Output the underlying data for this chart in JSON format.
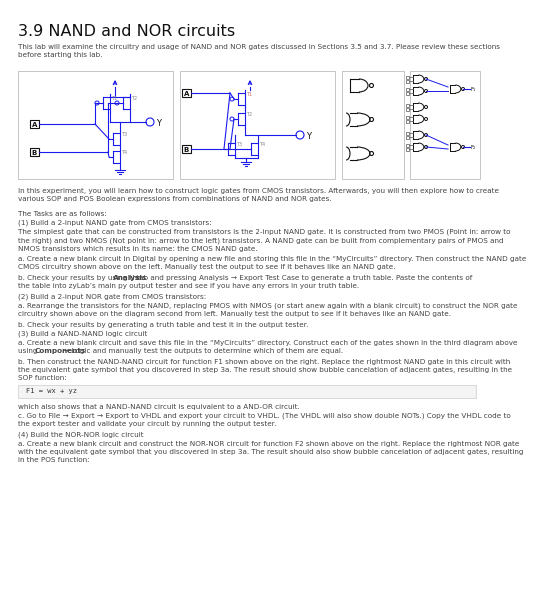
{
  "title": "3.9 NAND and NOR circuits",
  "title_fontsize": 11.5,
  "body_fontsize": 5.2,
  "code_fontsize": 5.0,
  "bg_color": "#ffffff",
  "text_color": "#444444",
  "blue_color": "#1a1aee",
  "intro": "This lab will examine the circuitry and usage of NAND and NOR gates discussed in Sections 3.5 and 3.7. Please review these sections\nbefore starting this lab.",
  "para1": "In this experiment, you will learn how to construct logic gates from CMOS transistors. Afterwards, you will then explore how to create\nvarious SOP and POS Boolean expressions from combinations of NAND and NOR gates.",
  "tasks_header": "The Tasks are as follows:",
  "task1_header": "(1) Build a 2-input NAND gate from CMOS transistors:",
  "task1_body": "The simplest gate that can be constructed from transistors is the 2-input NAND gate. It is constructed from two PMOS (Point in: arrow to\nthe right) and two NMOS (Not point in: arrow to the left) transistors. A NAND gate can be built from complementary pairs of PMOS and\nNMOS transistors which results in its name: the CMOS NAND gate.",
  "task1a": "a. Create a new blank circuit in Digital by opening a new file and storing this file in the “MyCircuits” directory. Then construct the NAND gate\nCMOS circuitry shown above on the left. Manually test the output to see if it behaves like an NAND gate.",
  "task1b_pre": "b. Check your results by using the ",
  "task1b_bold": "Analysis",
  "task1b_post": " tab and pressing Analysis → Export Test Case to generate a truth table. Paste the contents of\nthe table into zyLab’s main py output tester and see if you have any errors in your truth table.",
  "task2_header": "(2) Build a 2-input NOR gate from CMOS transistors:",
  "task2a": "a. Rearrange the transistors for the NAND, replacing PMOS with NMOS (or start anew again with a blank circuit) to construct the NOR gate\ncircuitry shown above on the diagram second from left. Manually test the output to see if it behaves like an NAND gate.",
  "task2b": "b. Check your results by generating a truth table and test it in the output tester.",
  "task3_header": "(3) Build a NAND-NAND logic circuit",
  "task3a_pre": "a. Create a new blank circuit and save this file in the “MyCircuits” directory. Construct each of the gates shown in the third diagram above\nusing ",
  "task3a_bold": "Components",
  "task3a_post": " → Logic and manually test the outputs to determine which of them are equal.",
  "task3b": "b. Then construct the NAND-NAND circuit for function F1 shown above on the right. Replace the rightmost NAND gate in this circuit with\nthe equivalent gate symbol that you discovered in step 3a. The result should show bubble cancelation of adjacent gates, resulting in the\nSOP function:",
  "code_line": "F1 = wx + yz",
  "task3_after": "which also shows that a NAND-NAND circuit is equivalent to a AND-OR circuit.",
  "task3c": "c. Go to File → Export → Export to VHDL and export your circuit to VHDL. (The VHDL will also show double NOTs.) Copy the VHDL code to\nthe export tester and validate your circuit by running the output tester.",
  "task4_header": "(4) Build the NOR-NOR logic circuit",
  "task4a": "a. Create a new blank circuit and construct the NOR-NOR circuit for function F2 shown above on the right. Replace the rightmost NOR gate\nwith the equivalent gate symbol that you discovered in step 3a. The result should also show bubble cancelation of adjacent gates, resulting\nin the POS function:"
}
